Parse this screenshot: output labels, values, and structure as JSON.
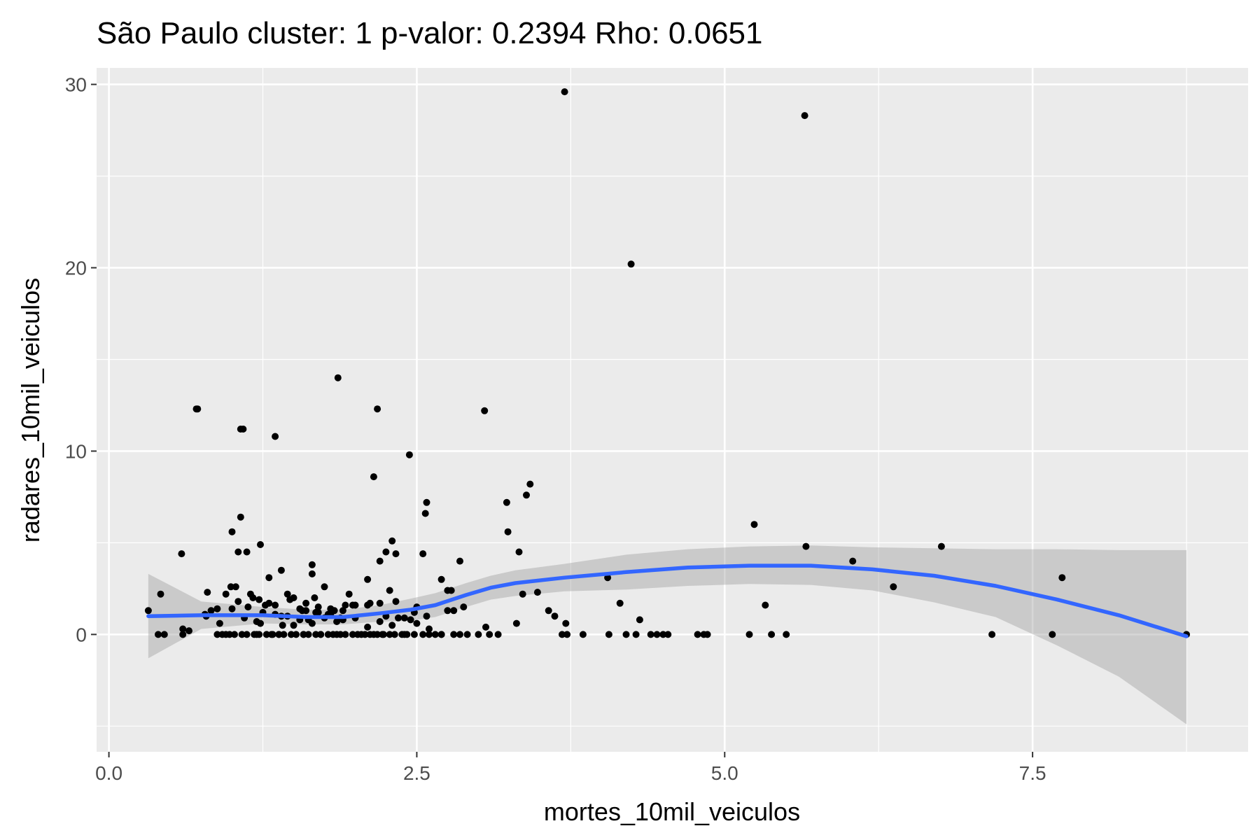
{
  "chart_data": {
    "type": "scatter",
    "title": "São Paulo cluster: 1 p-valor: 0.2394 Rho: 0.0651",
    "xlabel": "mortes_10mil_veiculos",
    "ylabel": "radares_10mil_veiculos",
    "xlim": [
      -0.1,
      9.25
    ],
    "ylim": [
      -6.4,
      30.9
    ],
    "x_ticks": [
      0.0,
      2.5,
      5.0,
      7.5
    ],
    "x_tick_labels": [
      "0.0",
      "2.5",
      "5.0",
      "7.5"
    ],
    "y_ticks": [
      0,
      10,
      20,
      30
    ],
    "y_tick_labels": [
      "0",
      "10",
      "20",
      "30"
    ],
    "grid": true,
    "colors": {
      "panel_background": "#ebebeb",
      "grid": "#ffffff",
      "points": "#000000",
      "smooth_line": "#3366ff",
      "ribbon": "#999999"
    },
    "series": [
      {
        "type": "points",
        "x": [
          0.32,
          0.42,
          0.4,
          0.45,
          0.59,
          0.6,
          0.65,
          0.72,
          0.8,
          0.88,
          0.79,
          0.83,
          0.92,
          1.0,
          1.03,
          1.07,
          1.09,
          1.12,
          1.15,
          1.17,
          1.2,
          1.23,
          1.27,
          1.3,
          1.33,
          1.35,
          1.38,
          1.41,
          1.45,
          1.47,
          1.5,
          1.55,
          1.58,
          1.6,
          1.62,
          1.65,
          1.68,
          1.7,
          1.72,
          1.75,
          1.8,
          1.83,
          1.85,
          1.9,
          1.95,
          2.0,
          2.05,
          2.1,
          2.15,
          2.2,
          2.25,
          2.3,
          2.35,
          2.4,
          2.45,
          2.5,
          2.55,
          2.6,
          2.65,
          2.7,
          2.75,
          2.8,
          2.85,
          0.95,
          0.98,
          1.02,
          1.08,
          1.12,
          1.18,
          1.22,
          1.28,
          1.32,
          1.38,
          1.42,
          1.48,
          1.52,
          1.58,
          1.62,
          1.68,
          1.72,
          1.78,
          1.82,
          1.88,
          1.92,
          1.98,
          2.02,
          2.08,
          2.12,
          2.18,
          2.22,
          2.28,
          2.32,
          2.38,
          2.42,
          2.48,
          0.9,
          1.0,
          1.1,
          1.2,
          1.25,
          1.3,
          1.4,
          1.5,
          1.55,
          1.6,
          1.65,
          1.7,
          1.75,
          1.8,
          1.85,
          1.9,
          2.0,
          2.1,
          2.2,
          2.25,
          2.3,
          2.4,
          2.5,
          2.6,
          2.7,
          2.8,
          0.78,
          0.88,
          0.95,
          1.05,
          1.13,
          1.22,
          1.35,
          1.45,
          1.57,
          1.67,
          1.78,
          1.88,
          1.98,
          2.12,
          2.23,
          2.33,
          2.48,
          2.58,
          0.71,
          1.07,
          1.35,
          1.86,
          2.18,
          3.05,
          2.44,
          2.15,
          1.05,
          0.99,
          0.6,
          1.23,
          1.4,
          1.65,
          1.92,
          2.1,
          2.2,
          2.28,
          2.33,
          2.57,
          2.58,
          2.55,
          2.7,
          2.75,
          2.78,
          2.88,
          2.91,
          2.85,
          3.0,
          3.06,
          3.16,
          3.23,
          3.24,
          3.31,
          3.33,
          3.36,
          3.39,
          3.42,
          3.48,
          3.57,
          3.62,
          3.68,
          3.71,
          3.72,
          3.85,
          4.05,
          4.06,
          4.15,
          4.2,
          4.24,
          4.28,
          4.31,
          4.4,
          4.45,
          4.5,
          4.54,
          4.78,
          4.83,
          4.86,
          5.2,
          5.24,
          5.33,
          5.38,
          5.5,
          5.65,
          5.66,
          6.04,
          6.37,
          6.76,
          7.17,
          7.66,
          7.74,
          8.75,
          3.09,
          3.7
        ],
        "y": [
          1.3,
          2.2,
          0.0,
          0.0,
          4.4,
          0.0,
          0.2,
          12.3,
          2.3,
          0.0,
          1.0,
          1.3,
          0.0,
          5.6,
          2.6,
          6.4,
          11.2,
          4.5,
          2.2,
          2.0,
          0.0,
          4.9,
          1.6,
          3.1,
          0.0,
          1.6,
          0.0,
          0.5,
          1.0,
          1.9,
          2.0,
          1.4,
          0.0,
          1.7,
          0.8,
          3.8,
          1.2,
          1.2,
          0.0,
          2.6,
          1.4,
          1.3,
          0.0,
          0.8,
          2.2,
          1.6,
          0.0,
          1.6,
          0.0,
          1.7,
          4.5,
          5.1,
          0.9,
          0.0,
          0.8,
          1.5,
          0.0,
          0.0,
          0.0,
          0.0,
          2.4,
          1.3,
          0.0,
          0.0,
          0.0,
          0.0,
          0.0,
          0.0,
          0.0,
          0.0,
          0.0,
          0.0,
          0.0,
          0.0,
          0.0,
          0.0,
          0.0,
          0.0,
          0.0,
          0.0,
          0.0,
          0.0,
          0.0,
          0.0,
          0.0,
          0.0,
          0.0,
          0.0,
          0.0,
          0.0,
          0.0,
          0.0,
          0.0,
          0.0,
          0.0,
          0.6,
          1.4,
          0.9,
          0.7,
          1.2,
          1.7,
          1.0,
          0.5,
          0.8,
          1.3,
          0.6,
          1.5,
          0.9,
          1.1,
          0.7,
          1.3,
          0.9,
          0.4,
          0.7,
          1.0,
          0.5,
          0.9,
          0.6,
          0.3,
          0.0,
          0.0,
          1.1,
          1.4,
          2.2,
          1.8,
          1.5,
          1.9,
          1.1,
          2.2,
          1.3,
          2.0,
          1.1,
          0.9,
          1.6,
          1.7,
          0.0,
          1.8,
          1.2,
          1.0,
          12.3,
          11.2,
          10.8,
          14.0,
          12.3,
          12.2,
          9.8,
          8.6,
          4.5,
          2.6,
          0.3,
          0.6,
          3.5,
          3.3,
          1.6,
          3.0,
          4.0,
          2.4,
          4.4,
          6.6,
          7.2,
          4.4,
          3.0,
          1.3,
          2.4,
          1.5,
          0.0,
          4.0,
          0.0,
          0.4,
          0.0,
          7.2,
          5.6,
          0.6,
          4.5,
          2.2,
          7.6,
          8.2,
          2.3,
          1.3,
          1.0,
          0.0,
          0.6,
          0.0,
          0.0,
          3.1,
          0.0,
          1.7,
          0.0,
          20.2,
          0.0,
          0.8,
          0.0,
          0.0,
          0.0,
          0.0,
          0.0,
          0.0,
          0.0,
          0.0,
          6.0,
          1.6,
          0.0,
          0.0,
          28.3,
          4.8,
          4.0,
          2.6,
          4.8,
          0.0,
          0.0,
          3.1,
          0.0,
          0.0,
          29.6
        ]
      },
      {
        "type": "smooth",
        "x": [
          0.32,
          0.75,
          1.25,
          1.6,
          1.9,
          2.2,
          2.45,
          2.65,
          2.9,
          3.1,
          3.3,
          3.7,
          4.2,
          4.7,
          5.2,
          5.7,
          6.2,
          6.7,
          7.2,
          7.7,
          8.2,
          8.75
        ],
        "y": [
          1.0,
          1.05,
          1.05,
          0.95,
          0.95,
          1.15,
          1.35,
          1.6,
          2.15,
          2.55,
          2.8,
          3.1,
          3.4,
          3.65,
          3.75,
          3.75,
          3.55,
          3.2,
          2.65,
          1.9,
          1.05,
          -0.1
        ],
        "ymin": [
          -1.3,
          0.3,
          0.6,
          0.55,
          0.55,
          0.7,
          0.75,
          0.95,
          1.5,
          1.9,
          2.1,
          2.35,
          2.45,
          2.65,
          2.75,
          2.7,
          2.4,
          1.75,
          0.95,
          -0.6,
          -2.3,
          -4.9
        ],
        "ymax": [
          3.3,
          1.8,
          1.5,
          1.35,
          1.35,
          1.6,
          1.95,
          2.25,
          2.8,
          3.2,
          3.5,
          3.85,
          4.35,
          4.65,
          4.8,
          4.85,
          4.75,
          4.7,
          4.65,
          4.65,
          4.6,
          4.6
        ]
      }
    ]
  }
}
